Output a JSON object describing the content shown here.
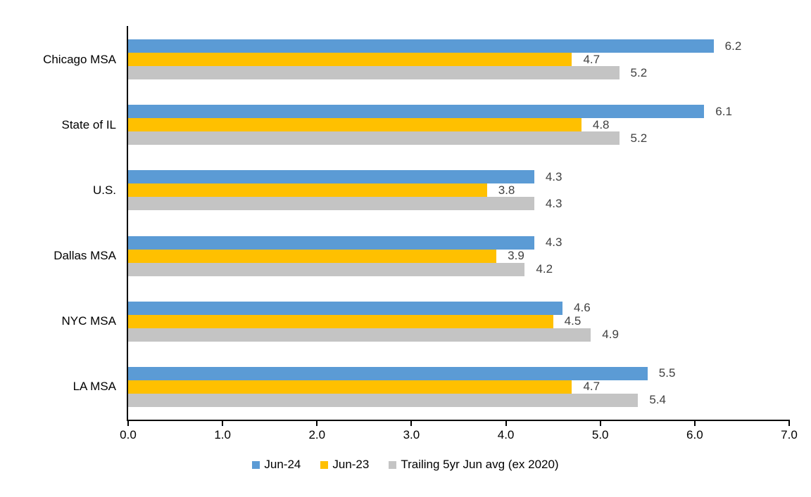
{
  "chart_data": {
    "type": "bar",
    "orientation": "horizontal",
    "title": "",
    "categories": [
      "Chicago MSA",
      "State of IL",
      "U.S.",
      "Dallas MSA",
      "NYC MSA",
      "LA MSA"
    ],
    "series": [
      {
        "name": "Jun-24",
        "color": "#5B9BD5",
        "values": [
          6.2,
          6.1,
          4.3,
          4.3,
          4.6,
          5.5
        ]
      },
      {
        "name": "Jun-23",
        "color": "#FFC000",
        "values": [
          4.7,
          4.8,
          3.8,
          3.9,
          4.5,
          4.7
        ]
      },
      {
        "name": "Trailing 5yr Jun avg (ex 2020)",
        "color": "#C4C4C4",
        "values": [
          5.2,
          5.2,
          4.3,
          4.2,
          4.9,
          5.4
        ]
      }
    ],
    "xlim": [
      0,
      7
    ],
    "x_ticks": [
      0,
      1,
      2,
      3,
      4,
      5,
      6,
      7
    ],
    "x_tick_labels": [
      "0.0",
      "1.0",
      "2.0",
      "3.0",
      "4.0",
      "5.0",
      "6.0",
      "7.0"
    ],
    "data_labels": true,
    "data_label_decimals": 1,
    "grid": false,
    "legend_position": "bottom",
    "colors": {
      "axis": "#000000",
      "category_text": "#000000",
      "tick_text": "#000000",
      "data_label_text": "#404040",
      "background": "#FFFFFF"
    }
  }
}
